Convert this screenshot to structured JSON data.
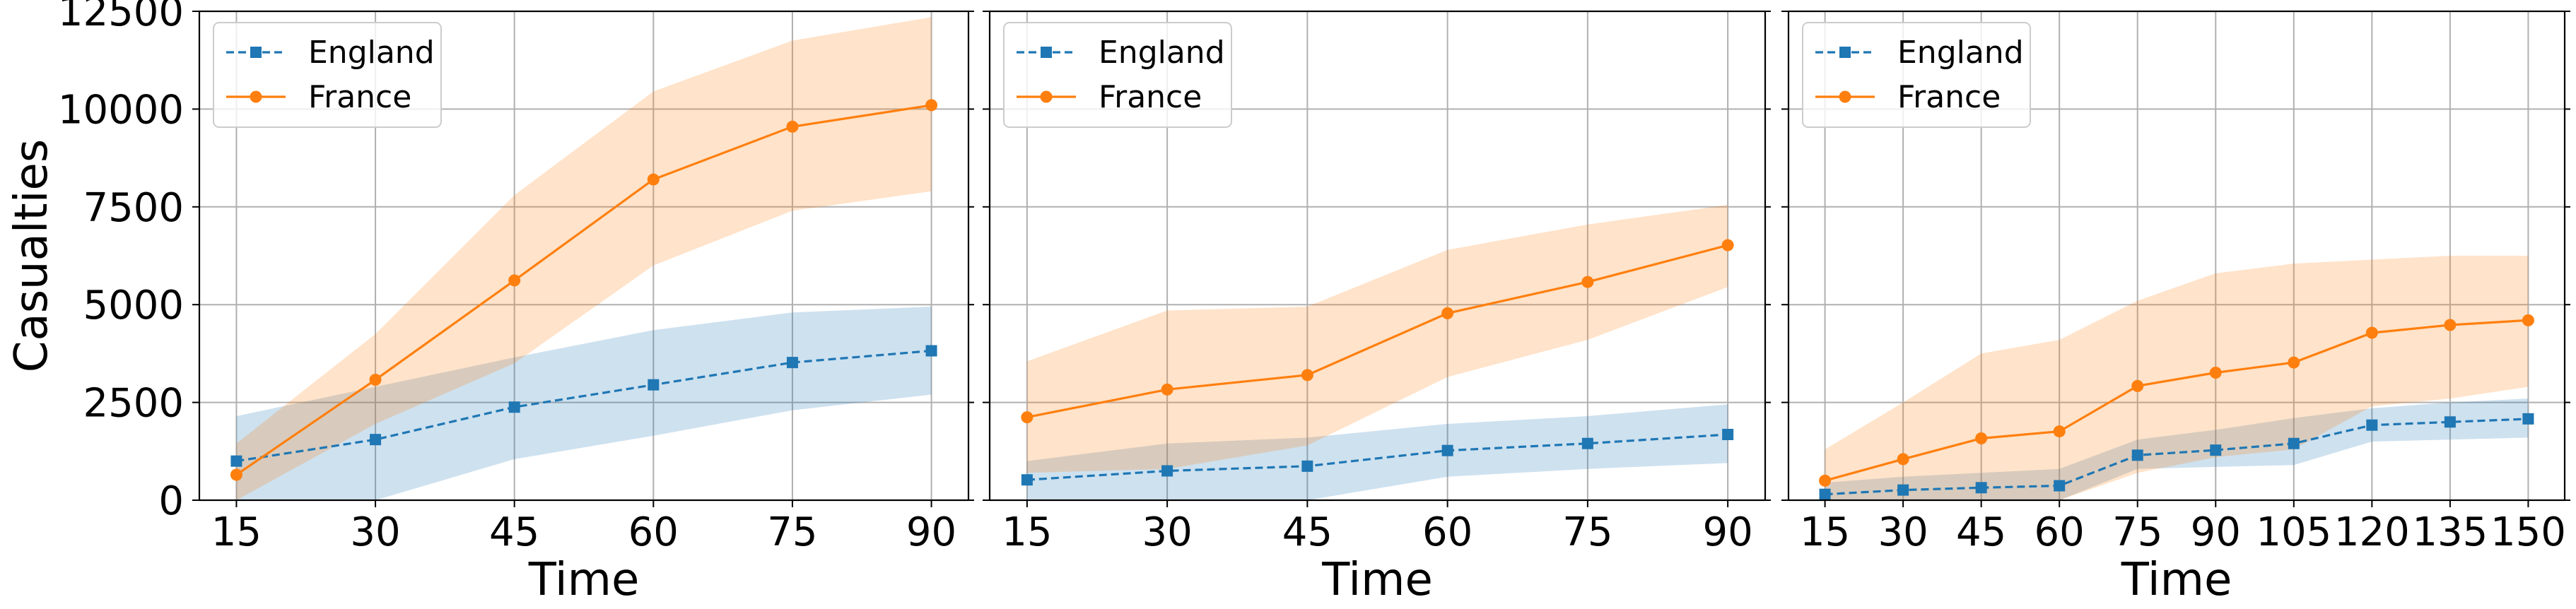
{
  "chart_data": [
    {
      "type": "line",
      "title": "",
      "xlabel": "Time",
      "ylabel": "Casualties",
      "x": [
        15,
        30,
        45,
        60,
        75,
        90
      ],
      "xticks": [
        "15",
        "30",
        "45",
        "60",
        "75",
        "90"
      ],
      "xlim": [
        11,
        94
      ],
      "ylim": [
        0,
        12500
      ],
      "yticks": [
        "0",
        "2500",
        "5000",
        "7500",
        "10000",
        "12500"
      ],
      "grid": true,
      "legend": "top-left",
      "series": [
        {
          "name": "England",
          "color": "#1f77b4",
          "marker": "square",
          "linestyle": "dashed",
          "values": [
            1000,
            1550,
            2380,
            2950,
            3520,
            3820
          ],
          "band_lower": [
            0,
            0,
            1050,
            1650,
            2300,
            2700
          ],
          "band_upper": [
            2150,
            2900,
            3650,
            4350,
            4800,
            4950
          ]
        },
        {
          "name": "France",
          "color": "#ff7f0e",
          "marker": "circle",
          "linestyle": "solid",
          "values": [
            650,
            3080,
            5620,
            8200,
            9550,
            10100
          ],
          "band_lower": [
            0,
            1950,
            3500,
            6000,
            7400,
            7900
          ],
          "band_upper": [
            1450,
            4250,
            7800,
            10450,
            11750,
            12350
          ]
        }
      ]
    },
    {
      "type": "line",
      "title": "",
      "xlabel": "Time",
      "ylabel": "",
      "x": [
        15,
        30,
        45,
        60,
        75,
        90
      ],
      "xticks": [
        "15",
        "30",
        "45",
        "60",
        "75",
        "90"
      ],
      "xlim": [
        11,
        94
      ],
      "ylim": [
        0,
        12500
      ],
      "yticks": [],
      "grid": true,
      "legend": "top-left",
      "series": [
        {
          "name": "England",
          "color": "#1f77b4",
          "marker": "square",
          "linestyle": "dashed",
          "values": [
            520,
            750,
            870,
            1270,
            1450,
            1680
          ],
          "band_lower": [
            0,
            0,
            0,
            600,
            800,
            950
          ],
          "band_upper": [
            1000,
            1450,
            1600,
            1950,
            2150,
            2450
          ]
        },
        {
          "name": "France",
          "color": "#ff7f0e",
          "marker": "circle",
          "linestyle": "solid",
          "values": [
            2120,
            2830,
            3200,
            4780,
            5580,
            6520
          ],
          "band_lower": [
            700,
            800,
            1400,
            3150,
            4100,
            5450
          ],
          "band_upper": [
            3550,
            4850,
            4950,
            6400,
            7050,
            7550
          ]
        }
      ]
    },
    {
      "type": "line",
      "title": "",
      "xlabel": "Time",
      "ylabel": "",
      "x": [
        15,
        30,
        45,
        60,
        75,
        90,
        105,
        120,
        135,
        150
      ],
      "xticks": [
        "15",
        "30",
        "45",
        "60",
        "75",
        "90",
        "105",
        "120",
        "135",
        "150"
      ],
      "xlim": [
        8,
        157
      ],
      "ylim": [
        0,
        12500
      ],
      "yticks": [],
      "grid": true,
      "legend": "top-left",
      "series": [
        {
          "name": "England",
          "color": "#1f77b4",
          "marker": "square",
          "linestyle": "dashed",
          "values": [
            150,
            260,
            320,
            370,
            1150,
            1280,
            1450,
            1920,
            2000,
            2080
          ],
          "band_lower": [
            0,
            0,
            0,
            0,
            800,
            850,
            900,
            1500,
            1550,
            1600
          ],
          "band_upper": [
            450,
            600,
            700,
            800,
            1550,
            1800,
            2100,
            2350,
            2500,
            2600
          ]
        },
        {
          "name": "France",
          "color": "#ff7f0e",
          "marker": "circle",
          "linestyle": "solid",
          "values": [
            500,
            1050,
            1580,
            1760,
            2920,
            3260,
            3520,
            4280,
            4480,
            4600
          ],
          "band_lower": [
            0,
            0,
            0,
            0,
            700,
            1100,
            1300,
            2400,
            2600,
            2900
          ],
          "band_upper": [
            1300,
            2500,
            3750,
            4100,
            5100,
            5800,
            6050,
            6150,
            6250,
            6250
          ]
        }
      ]
    }
  ]
}
